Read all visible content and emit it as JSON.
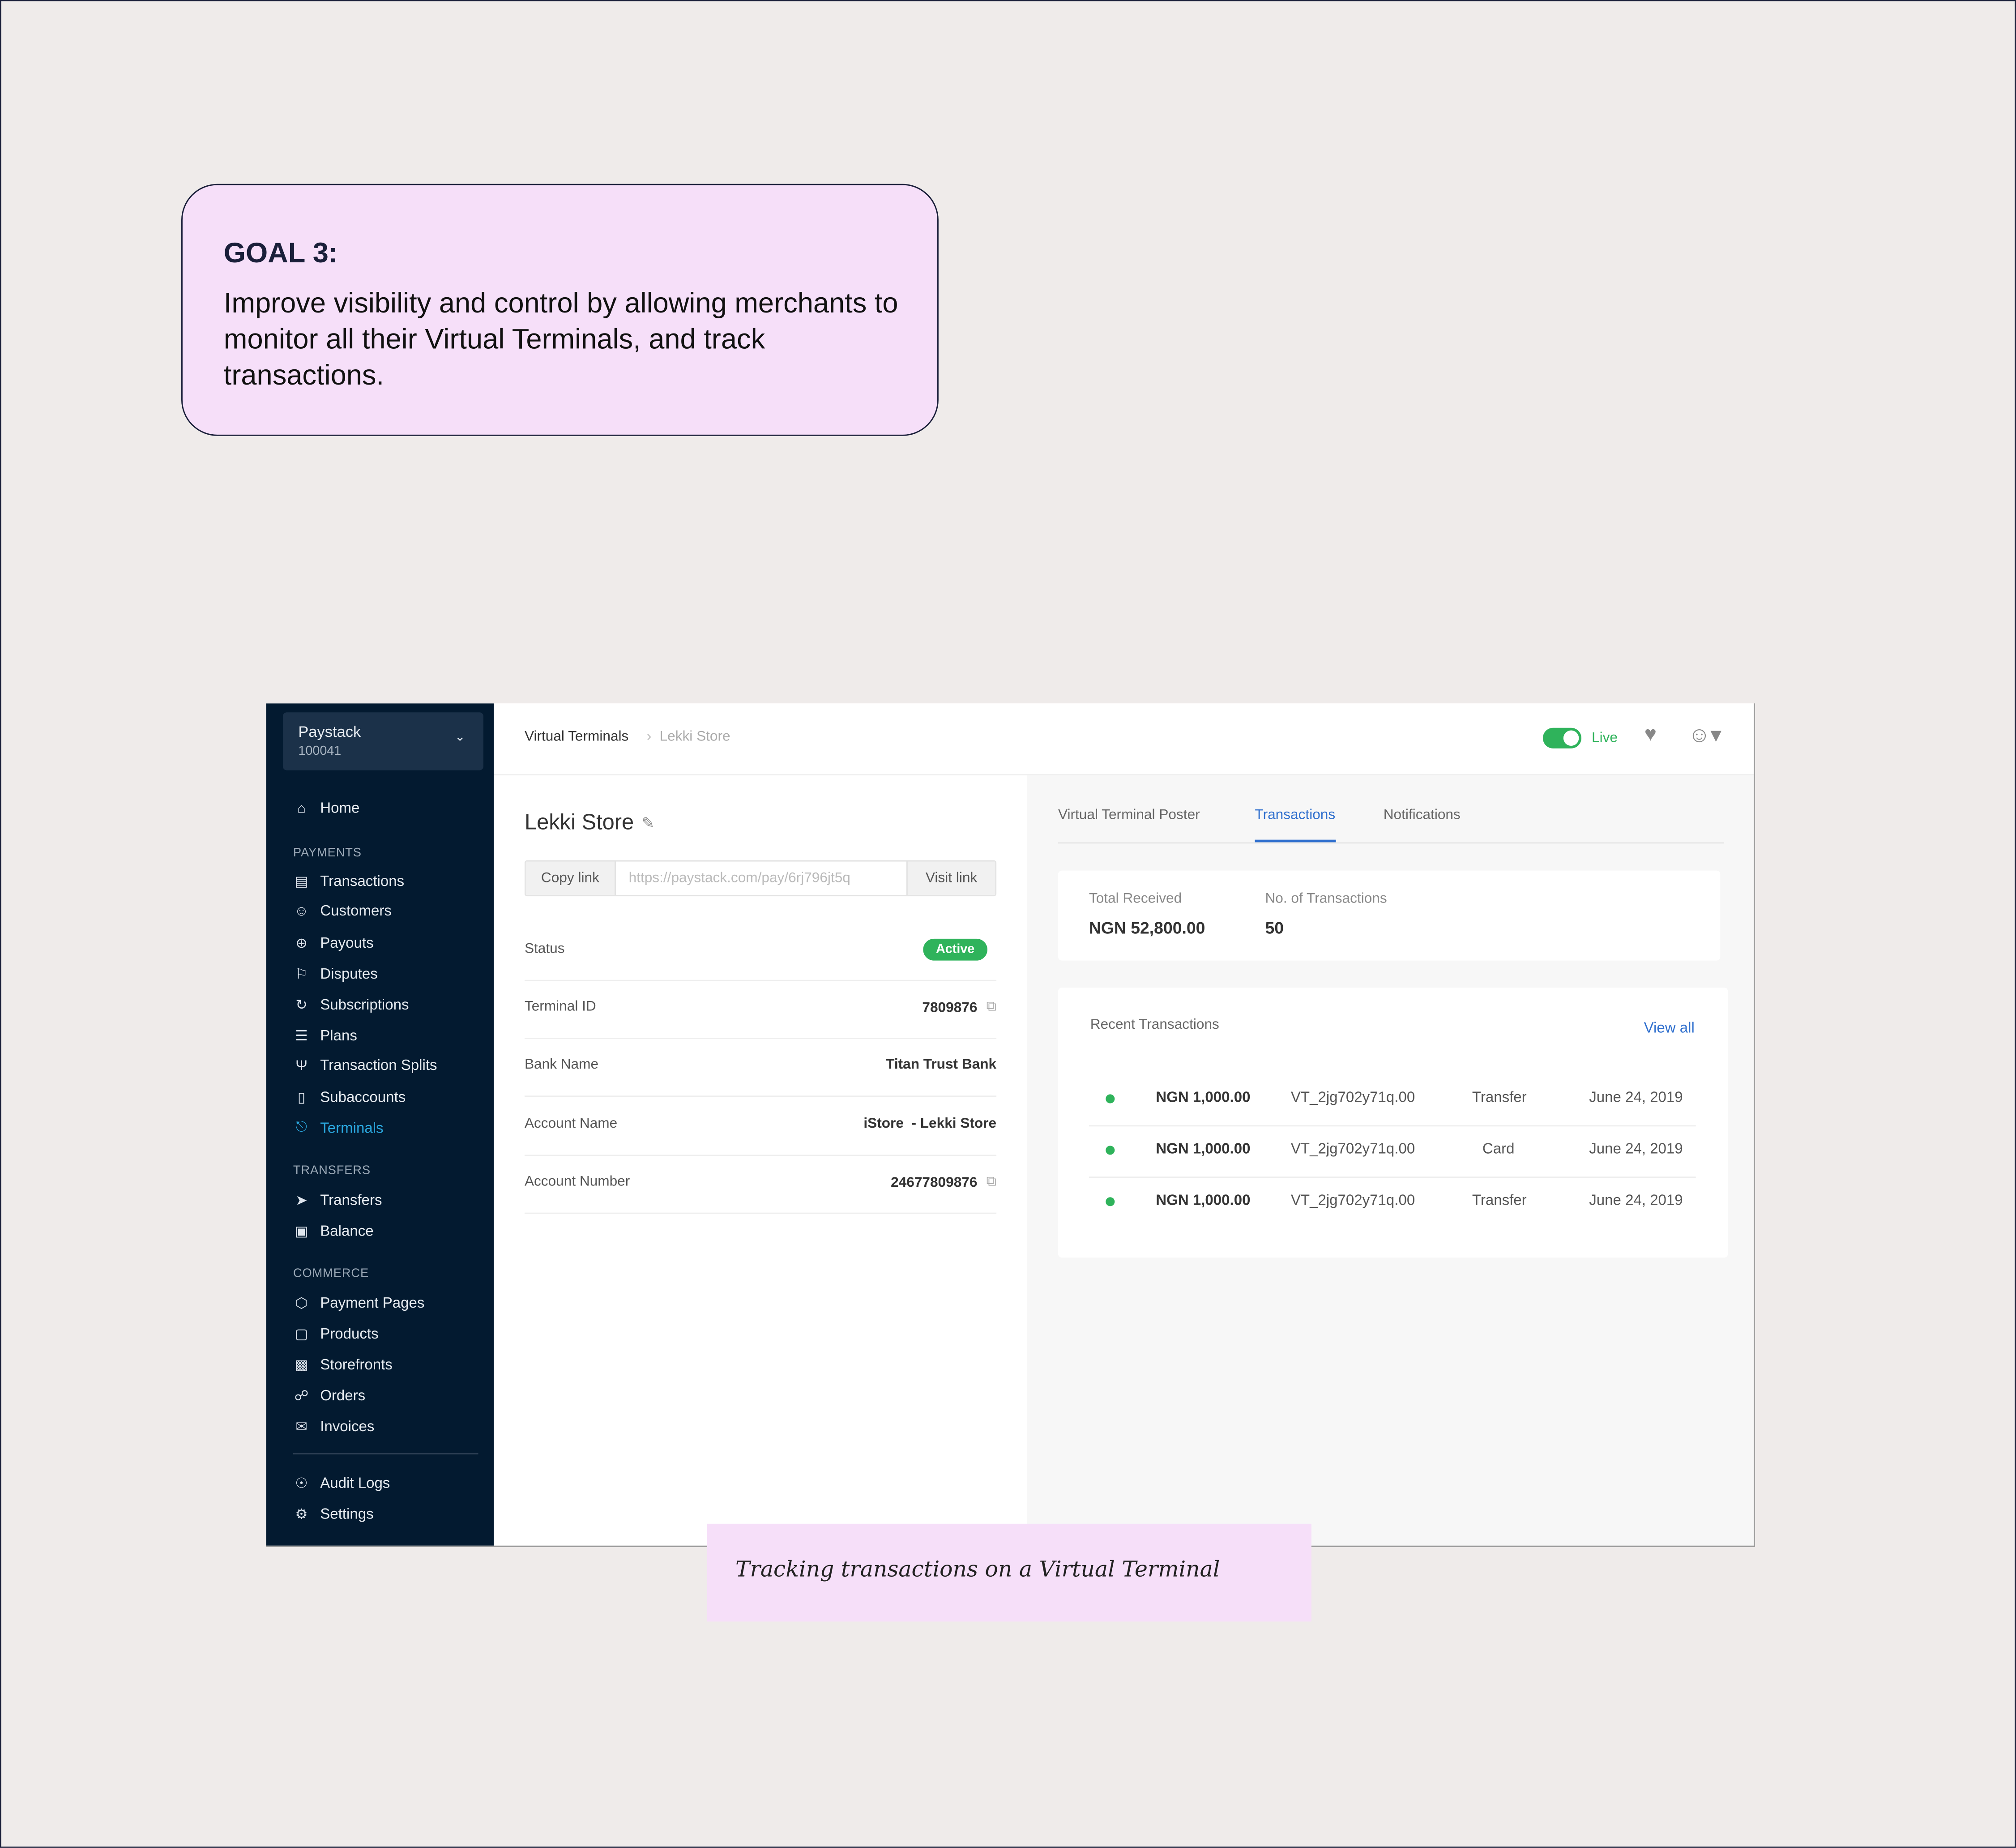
{
  "goal": {
    "title": "GOAL 3:",
    "body": "Improve visibility and control by allowing merchants to monitor all their Virtual Terminals, and track transactions."
  },
  "sidebar": {
    "business_name": "Paystack",
    "business_id": "100041",
    "home": "Home",
    "sections": [
      {
        "title": "PAYMENTS",
        "items": [
          "Transactions",
          "Customers",
          "Payouts",
          "Disputes",
          "Subscriptions",
          "Plans",
          "Transaction Splits",
          "Subaccounts",
          "Terminals"
        ]
      },
      {
        "title": "TRANSFERS",
        "items": [
          "Transfers",
          "Balance"
        ]
      },
      {
        "title": "COMMERCE",
        "items": [
          "Payment Pages",
          "Products",
          "Storefronts",
          "Orders",
          "Invoices"
        ]
      }
    ],
    "bottom": [
      "Audit Logs",
      "Settings"
    ],
    "active": "Terminals",
    "active_color": "#2aa6dd"
  },
  "header": {
    "breadcrumb": [
      "Virtual Terminals",
      "Lekki Store"
    ],
    "mode_label": "Live",
    "mode_on": true
  },
  "terminal": {
    "name": "Lekki Store",
    "copy_link": "Copy link",
    "link": "https://paystack.com/pay/6rj796jt5q",
    "visit_link": "Visit link",
    "fields": [
      {
        "label": "Status",
        "value": "Active"
      },
      {
        "label": "Terminal ID",
        "value": "7809876"
      },
      {
        "label": "Bank Name",
        "value": "Titan Trust Bank"
      },
      {
        "label": "Account Name",
        "value": "iStore  - Lekki Store"
      },
      {
        "label": "Account Number",
        "value": "24677809876"
      }
    ]
  },
  "tabs": [
    "Virtual Terminal Poster",
    "Transactions",
    "Notifications"
  ],
  "active_tab": "Transactions",
  "summary": {
    "total_label": "Total Received",
    "total_value": "NGN 52,800.00",
    "count_label": "No. of Transactions",
    "count_value": "50"
  },
  "recent": {
    "title": "Recent Transactions",
    "view_all": "View all",
    "rows": [
      {
        "amount": "NGN 1,000.00",
        "reference": "VT_2jg702y71q.00",
        "channel": "Transfer",
        "date": "June 24, 2019"
      },
      {
        "amount": "NGN 1,000.00",
        "reference": "VT_2jg702y71q.00",
        "channel": "Card",
        "date": "June 24, 2019"
      },
      {
        "amount": "NGN 1,000.00",
        "reference": "VT_2jg702y71q.00",
        "channel": "Transfer",
        "date": "June 24, 2019"
      }
    ]
  },
  "caption": "Tracking transactions on a Virtual Terminal",
  "colors": {
    "success": "#2fb35b",
    "link": "#2f6fce",
    "sidebar_bg": "#031a30",
    "note_bg": "#f6dff9"
  }
}
